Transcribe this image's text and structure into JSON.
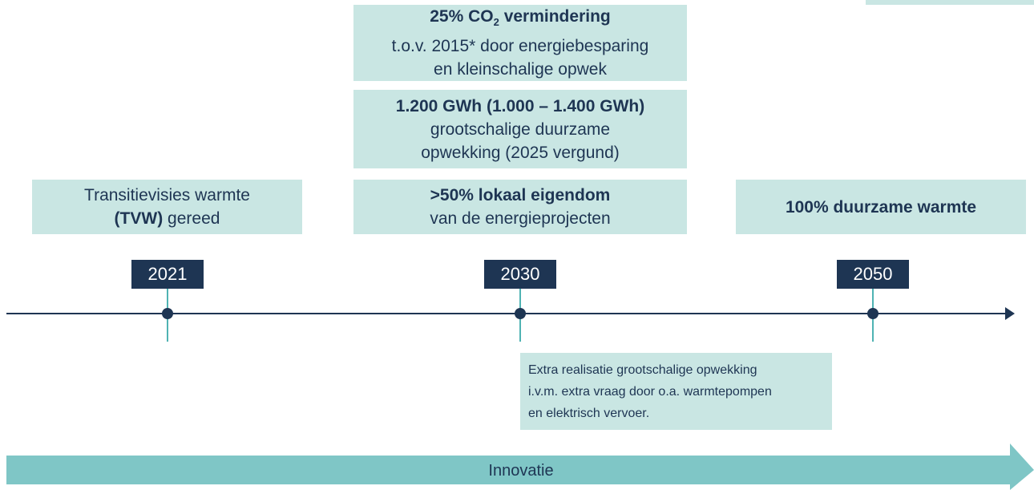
{
  "boxes": {
    "co2": {
      "title": {
        "pre": "25% CO",
        "sub": "2",
        "post": " vermindering"
      },
      "lines": [
        "t.o.v. 2015* door energiebesparing",
        "en kleinschalige opwek"
      ]
    },
    "gwh": {
      "title": "1.200 GWh (1.000 – 1.400 GWh)",
      "lines": [
        "grootschalige duurzame",
        "opwekking (2025 vergund)"
      ]
    },
    "local": {
      "title": ">50% lokaal eigendom",
      "lines": [
        "van de energieprojecten"
      ]
    },
    "tvw": {
      "line1": "Transitievisies warmte",
      "bold": "(TVW)",
      "rest": " gereed"
    },
    "heat": {
      "title": "100% duurzame warmte"
    },
    "note": {
      "lines": [
        "Extra realisatie grootschalige opwekking",
        "i.v.m. extra vraag door o.a. warmtepompen",
        "en elektrisch vervoer."
      ]
    }
  },
  "years": [
    "2021",
    "2030",
    "2050"
  ],
  "band": "Innovatie"
}
